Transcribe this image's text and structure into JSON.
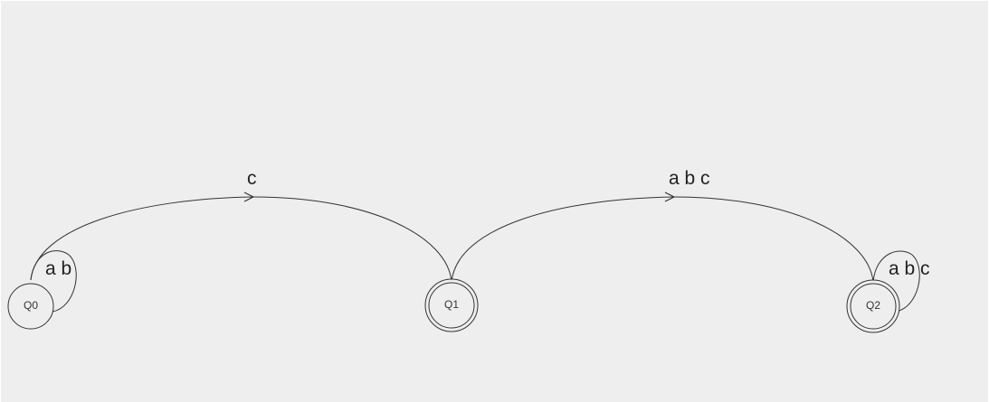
{
  "states": [
    {
      "id": "q0",
      "label": "Q0",
      "role": "normal",
      "ring_color": ""
    },
    {
      "id": "q1",
      "label": "Q1",
      "role": "initial",
      "ring_color": "#0000cc"
    },
    {
      "id": "q2",
      "label": "Q2",
      "role": "final",
      "ring_color": "#dd0000"
    }
  ],
  "transitions": [
    {
      "id": "q0-q0",
      "from": "Q0",
      "to": "Q0",
      "label": "a b"
    },
    {
      "id": "q0-q1",
      "from": "Q0",
      "to": "Q1",
      "label": "c"
    },
    {
      "id": "q1-q2",
      "from": "Q1",
      "to": "Q2",
      "label": "a b c"
    },
    {
      "id": "q2-q2",
      "from": "Q2",
      "to": "Q2",
      "label": "a b c"
    }
  ],
  "colors": {
    "edge": "#333333",
    "background": "#eeeeee",
    "initial_ring": "#0000cc",
    "final_ring": "#dd0000"
  }
}
